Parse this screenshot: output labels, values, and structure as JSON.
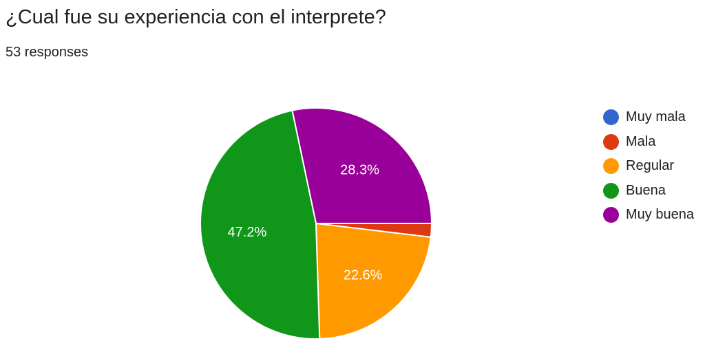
{
  "header": {
    "title": "¿Cual fue su experiencia con el interprete?",
    "responses": "53 responses"
  },
  "chart_data": {
    "type": "pie",
    "legend_position": "right",
    "start_angle_deg": -8,
    "series": [
      {
        "name": "Muy mala",
        "value": 0.0,
        "color": "#3366cc",
        "label": ""
      },
      {
        "name": "Mala",
        "value": 1.9,
        "color": "#dc3912",
        "label": ""
      },
      {
        "name": "Regular",
        "value": 22.6,
        "color": "#ff9900",
        "label": "22.6%"
      },
      {
        "name": "Buena",
        "value": 47.2,
        "color": "#109618",
        "label": "47.2%"
      },
      {
        "name": "Muy buena",
        "value": 28.3,
        "color": "#990099",
        "label": "28.3%"
      }
    ]
  }
}
